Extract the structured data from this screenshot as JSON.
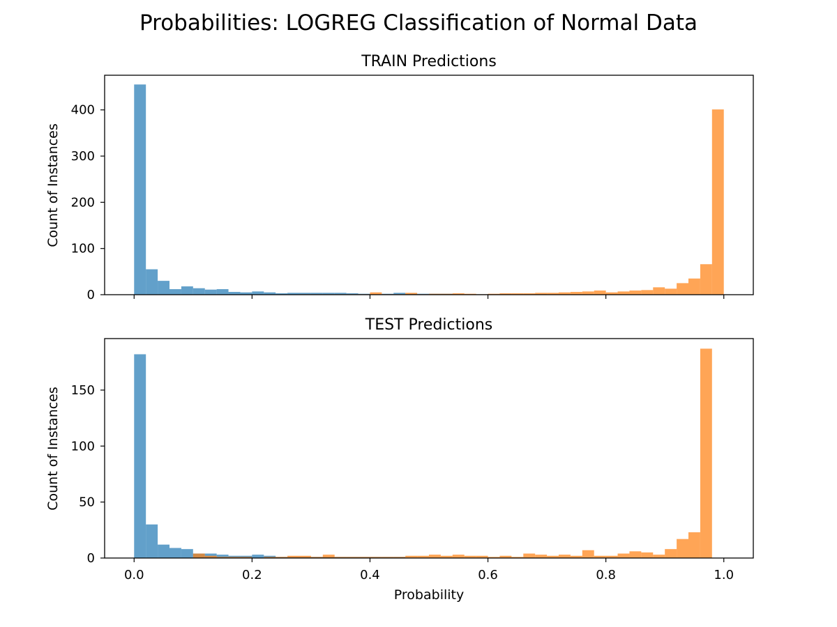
{
  "figure": {
    "suptitle": "Probabilities:  LOGREG Classification of Normal Data",
    "xlabel": "Probability"
  },
  "colors": {
    "class0": "#1f77b4",
    "class1": "#ff7f0e",
    "bar_alpha": 0.7
  },
  "chart_data": [
    {
      "type": "bar",
      "title": "TRAIN Predictions",
      "xlabel": "",
      "ylabel": "Count of Instances",
      "xlim": [
        -0.05,
        1.05
      ],
      "ylim": [
        0,
        475
      ],
      "xticks": [
        0.0,
        0.2,
        0.4,
        0.6,
        0.8,
        1.0
      ],
      "xtick_labels": [
        "",
        "",
        "",
        "",
        "",
        ""
      ],
      "yticks": [
        0,
        100,
        200,
        300,
        400
      ],
      "ytick_labels": [
        "0",
        "100",
        "200",
        "300",
        "400"
      ],
      "grid": false,
      "bin_start": 0.0,
      "bin_width": 0.02,
      "series": [
        {
          "color_key": "class0",
          "values": [
            455,
            55,
            30,
            12,
            18,
            14,
            11,
            12,
            6,
            5,
            7,
            5,
            3,
            4,
            4,
            4,
            4,
            4,
            3,
            2,
            1,
            2,
            4,
            2,
            2,
            2,
            2,
            1,
            1,
            1,
            1,
            1,
            0,
            0,
            1,
            0,
            0,
            0,
            0,
            0,
            0,
            0,
            0,
            0,
            0,
            0,
            0,
            0,
            0,
            0
          ]
        },
        {
          "color_key": "class1",
          "values": [
            0,
            0,
            0,
            0,
            0,
            0,
            0,
            0,
            0,
            0,
            0,
            0,
            0,
            0,
            1,
            1,
            1,
            1,
            1,
            1,
            5,
            1,
            1,
            4,
            1,
            2,
            2,
            3,
            2,
            1,
            2,
            3,
            3,
            3,
            4,
            4,
            5,
            6,
            7,
            9,
            5,
            7,
            9,
            10,
            16,
            13,
            25,
            35,
            66,
            401
          ]
        }
      ]
    },
    {
      "type": "bar",
      "title": "TEST Predictions",
      "xlabel": "Probability",
      "ylabel": "Count of Instances",
      "xlim": [
        -0.05,
        1.05
      ],
      "ylim": [
        0,
        196
      ],
      "xticks": [
        0.0,
        0.2,
        0.4,
        0.6,
        0.8,
        1.0
      ],
      "xtick_labels": [
        "0.0",
        "0.2",
        "0.4",
        "0.6",
        "0.8",
        "1.0"
      ],
      "yticks": [
        0,
        50,
        100,
        150
      ],
      "ytick_labels": [
        "0",
        "50",
        "100",
        "150"
      ],
      "grid": false,
      "bin_start": 0.0,
      "bin_width": 0.02,
      "series": [
        {
          "color_key": "class0",
          "values": [
            182,
            30,
            12,
            9,
            8,
            4,
            4,
            3,
            2,
            2,
            3,
            2,
            1,
            1,
            1,
            1,
            1,
            1,
            1,
            1,
            1,
            1,
            1,
            0,
            0,
            0,
            0,
            0,
            0,
            0,
            0,
            0,
            0,
            0,
            0,
            0,
            0,
            0,
            0,
            0,
            0,
            0,
            0,
            0,
            0,
            0,
            0,
            0,
            0,
            0
          ]
        },
        {
          "color_key": "class1",
          "values": [
            0,
            0,
            0,
            0,
            0,
            4,
            2,
            1,
            1,
            1,
            0,
            1,
            1,
            2,
            2,
            1,
            3,
            1,
            1,
            1,
            1,
            1,
            1,
            2,
            2,
            3,
            2,
            3,
            2,
            2,
            1,
            2,
            1,
            4,
            3,
            2,
            3,
            2,
            7,
            2,
            2,
            4,
            6,
            5,
            3,
            8,
            17,
            23,
            187,
            0
          ]
        }
      ]
    }
  ]
}
